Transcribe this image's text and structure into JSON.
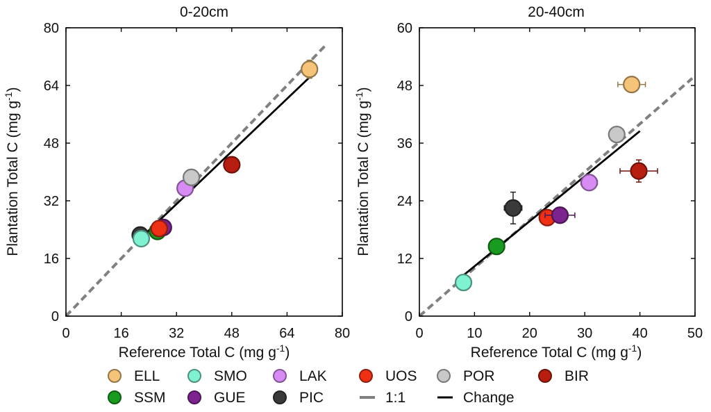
{
  "figure": {
    "legend": [
      {
        "label": "ELL",
        "color": "#f5c478"
      },
      {
        "label": "SMO",
        "color": "#7ff2d2"
      },
      {
        "label": "LAK",
        "color": "#d78cf5"
      },
      {
        "label": "UOS",
        "color": "#f03015"
      },
      {
        "label": "POR",
        "color": "#c8c8c8"
      },
      {
        "label": "BIR",
        "color": "#b81e10"
      },
      {
        "label": "SSM",
        "color": "#199b1f"
      },
      {
        "label": "GUE",
        "color": "#7d2390"
      },
      {
        "label": "PIC",
        "color": "#3a3a3a"
      },
      {
        "label": "1:1",
        "color": "#808080"
      },
      {
        "label": "Change",
        "color": "#000000"
      }
    ]
  },
  "chart_data": [
    {
      "type": "scatter",
      "title": "0-20cm",
      "xlabel": "Reference Total C (mg g",
      "ylabel": "Plantation Total C (mg g",
      "unit_superscript": "-1",
      "unit_close": ")",
      "xlim": [
        0,
        80
      ],
      "ylim": [
        0,
        80
      ],
      "xticks": [
        0,
        16,
        32,
        48,
        64,
        80
      ],
      "yticks": [
        0,
        16,
        32,
        48,
        64,
        80
      ],
      "points": [
        {
          "site": "PIC",
          "x": 21.5,
          "y": 22.5,
          "xerr": 0,
          "yerr": 0
        },
        {
          "site": "SMO",
          "x": 21.8,
          "y": 21.5,
          "xerr": 0,
          "yerr": 0
        },
        {
          "site": "SSM",
          "x": 26.5,
          "y": 23.5,
          "xerr": 0,
          "yerr": 0
        },
        {
          "site": "GUE",
          "x": 28.2,
          "y": 24.6,
          "xerr": 0,
          "yerr": 0
        },
        {
          "site": "UOS",
          "x": 27.0,
          "y": 24.3,
          "xerr": 0,
          "yerr": 0
        },
        {
          "site": "LAK",
          "x": 34.5,
          "y": 35.5,
          "xerr": 0,
          "yerr": 0
        },
        {
          "site": "POR",
          "x": 36.3,
          "y": 38.5,
          "xerr": 0,
          "yerr": 0
        },
        {
          "site": "BIR",
          "x": 48.0,
          "y": 42.0,
          "xerr": 0,
          "yerr": 0
        },
        {
          "site": "ELL",
          "x": 70.5,
          "y": 68.5,
          "xerr": 1.2,
          "yerr": 2.5
        }
      ],
      "one_to_one": {
        "x": [
          0,
          75.5
        ],
        "y": [
          0,
          75.5
        ]
      },
      "change_line": {
        "x": [
          21.5,
          71.0
        ],
        "y": [
          21.5,
          66.7
        ]
      }
    },
    {
      "type": "scatter",
      "title": "20-40cm",
      "xlabel": "Reference Total C (mg g",
      "ylabel": "Plantation Total C (mg g",
      "unit_superscript": "-1",
      "unit_close": ")",
      "xlim": [
        0,
        50
      ],
      "ylim": [
        0,
        60
      ],
      "xticks": [
        0,
        10,
        20,
        30,
        40,
        50
      ],
      "yticks": [
        0,
        12,
        24,
        36,
        48,
        60
      ],
      "points": [
        {
          "site": "SMO",
          "x": 8.0,
          "y": 7.0,
          "xerr": 0,
          "yerr": 1.2
        },
        {
          "site": "SSM",
          "x": 14.0,
          "y": 14.5,
          "xerr": 0,
          "yerr": 0
        },
        {
          "site": "PIC",
          "x": 17.0,
          "y": 22.5,
          "xerr": 1.6,
          "yerr": 3.3
        },
        {
          "site": "UOS",
          "x": 23.2,
          "y": 20.5,
          "xerr": 1.0,
          "yerr": 0
        },
        {
          "site": "GUE",
          "x": 25.5,
          "y": 21.0,
          "xerr": 2.7,
          "yerr": 0
        },
        {
          "site": "LAK",
          "x": 30.8,
          "y": 27.8,
          "xerr": 1.5,
          "yerr": 0
        },
        {
          "site": "POR",
          "x": 35.8,
          "y": 37.8,
          "xerr": 0,
          "yerr": 0
        },
        {
          "site": "BIR",
          "x": 39.8,
          "y": 30.2,
          "xerr": 3.4,
          "yerr": 2.3
        },
        {
          "site": "ELL",
          "x": 38.5,
          "y": 48.2,
          "xerr": 2.5,
          "yerr": 0
        }
      ],
      "one_to_one": {
        "x": [
          0,
          49.5
        ],
        "y": [
          0,
          49.5
        ]
      },
      "change_line": {
        "x": [
          8.0,
          40.0
        ],
        "y": [
          8.5,
          38.5
        ]
      }
    }
  ]
}
